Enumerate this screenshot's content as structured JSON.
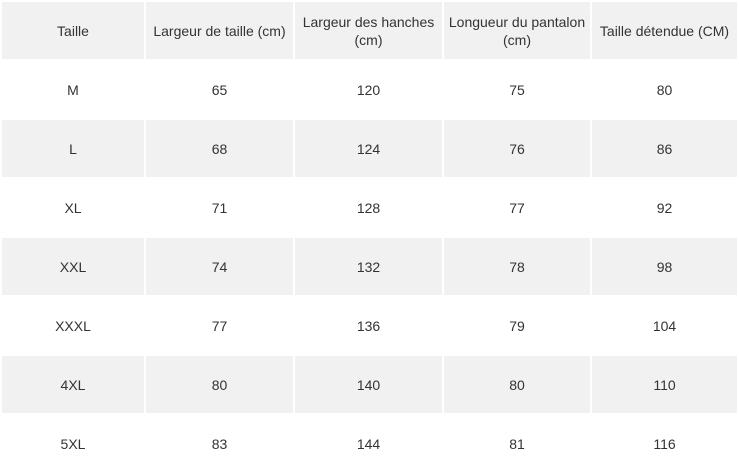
{
  "table": {
    "headers": [
      "Taille",
      "Largeur de taille (cm)",
      "Largeur des hanches (cm)",
      "Longueur du pantalon (cm)",
      "Taille détendue (CM)"
    ],
    "rows": [
      [
        "M",
        "65",
        "120",
        "75",
        "80"
      ],
      [
        "L",
        "68",
        "124",
        "76",
        "86"
      ],
      [
        "XL",
        "71",
        "128",
        "77",
        "92"
      ],
      [
        "XXL",
        "74",
        "132",
        "78",
        "98"
      ],
      [
        "XXXL",
        "77",
        "136",
        "79",
        "104"
      ],
      [
        "4XL",
        "80",
        "140",
        "80",
        "110"
      ],
      [
        "5XL",
        "83",
        "144",
        "81",
        "116"
      ]
    ]
  }
}
